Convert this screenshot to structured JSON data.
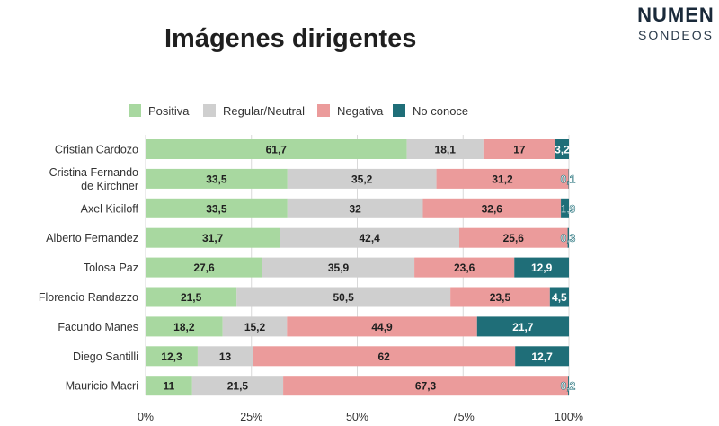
{
  "brand": {
    "name": "NUMEN",
    "sub": "SONDEOS"
  },
  "chart_data": {
    "type": "bar",
    "orientation": "horizontal",
    "stacked": true,
    "title": "Imágenes dirigentes",
    "xlabel": "",
    "ylabel": "",
    "xlim": [
      0,
      100
    ],
    "xticks": [
      "0%",
      "25%",
      "50%",
      "75%",
      "100%"
    ],
    "legend": "top",
    "categories": [
      "Cristian Cardozo",
      "Cristina Fernando de Kirchner",
      "Axel Kiciloff",
      "Alberto Fernandez",
      "Tolosa Paz",
      "Florencio Randazzo",
      "Facundo Manes",
      "Diego Santilli",
      "Mauricio Macri"
    ],
    "value_labels": [
      [
        "61,7",
        "18,1",
        "17",
        "3,2"
      ],
      [
        "33,5",
        "35,2",
        "31,2",
        "0,1"
      ],
      [
        "33,5",
        "32",
        "32,6",
        "1,9"
      ],
      [
        "31,7",
        "42,4",
        "25,6",
        "0,3"
      ],
      [
        "27,6",
        "35,9",
        "23,6",
        "12,9"
      ],
      [
        "21,5",
        "50,5",
        "23,5",
        "4,5"
      ],
      [
        "18,2",
        "15,2",
        "44,9",
        "21,7"
      ],
      [
        "12,3",
        "13",
        "62",
        "12,7"
      ],
      [
        "11",
        "21,5",
        "67,3",
        "0,2"
      ]
    ],
    "series": [
      {
        "name": "Positiva",
        "color": "#a8d8a0",
        "label_color": "#1f1f1f",
        "values": [
          61.7,
          33.5,
          33.5,
          31.7,
          27.6,
          21.5,
          18.2,
          12.3,
          11
        ]
      },
      {
        "name": "Regular/Neutral",
        "color": "#cfcfcf",
        "label_color": "#1f1f1f",
        "values": [
          18.1,
          35.2,
          32,
          42.4,
          35.9,
          50.5,
          15.2,
          13,
          21.5
        ]
      },
      {
        "name": "Negativa",
        "color": "#eb9b9b",
        "label_color": "#1f1f1f",
        "values": [
          17,
          31.2,
          32.6,
          25.6,
          23.6,
          23.5,
          44.9,
          62,
          67.3
        ]
      },
      {
        "name": "No conoce",
        "color": "#1f6e78",
        "label_color": "#ffffff",
        "values": [
          3.2,
          0.1,
          1.9,
          0.3,
          12.9,
          4.5,
          21.7,
          12.7,
          0.2
        ]
      }
    ]
  }
}
